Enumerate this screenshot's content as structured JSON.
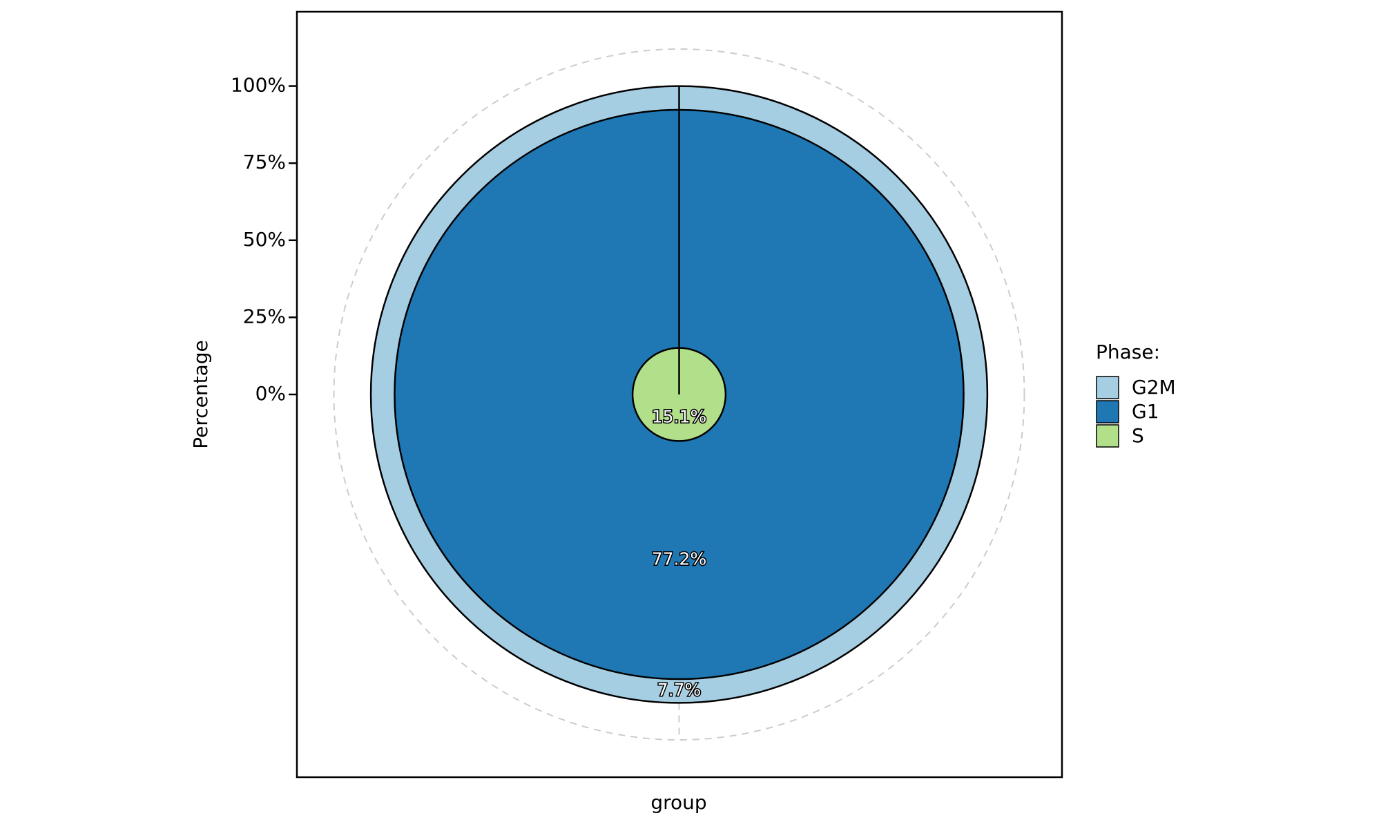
{
  "chart_data": {
    "type": "bar",
    "polar": true,
    "x_label": "group",
    "y_label": "Percentage",
    "legend_title": "Phase:",
    "categories": [
      "group"
    ],
    "series": [
      {
        "name": "G2M",
        "color": "#a6cee3",
        "values": [
          7.7
        ],
        "value_labels": [
          "7.7%"
        ]
      },
      {
        "name": "G1",
        "color": "#1f78b4",
        "values": [
          77.2
        ],
        "value_labels": [
          "77.2%"
        ]
      },
      {
        "name": "S",
        "color": "#b2df8a",
        "values": [
          15.1
        ],
        "value_labels": [
          "15.1%"
        ]
      }
    ],
    "ylim": [
      0,
      112
    ],
    "yticks": [
      {
        "value": 0,
        "label": "0%"
      },
      {
        "value": 25,
        "label": "25%"
      },
      {
        "value": 50,
        "label": "50%"
      },
      {
        "value": 75,
        "label": "75%"
      },
      {
        "value": 100,
        "label": "100%"
      }
    ],
    "grid": true,
    "legend": "right"
  }
}
